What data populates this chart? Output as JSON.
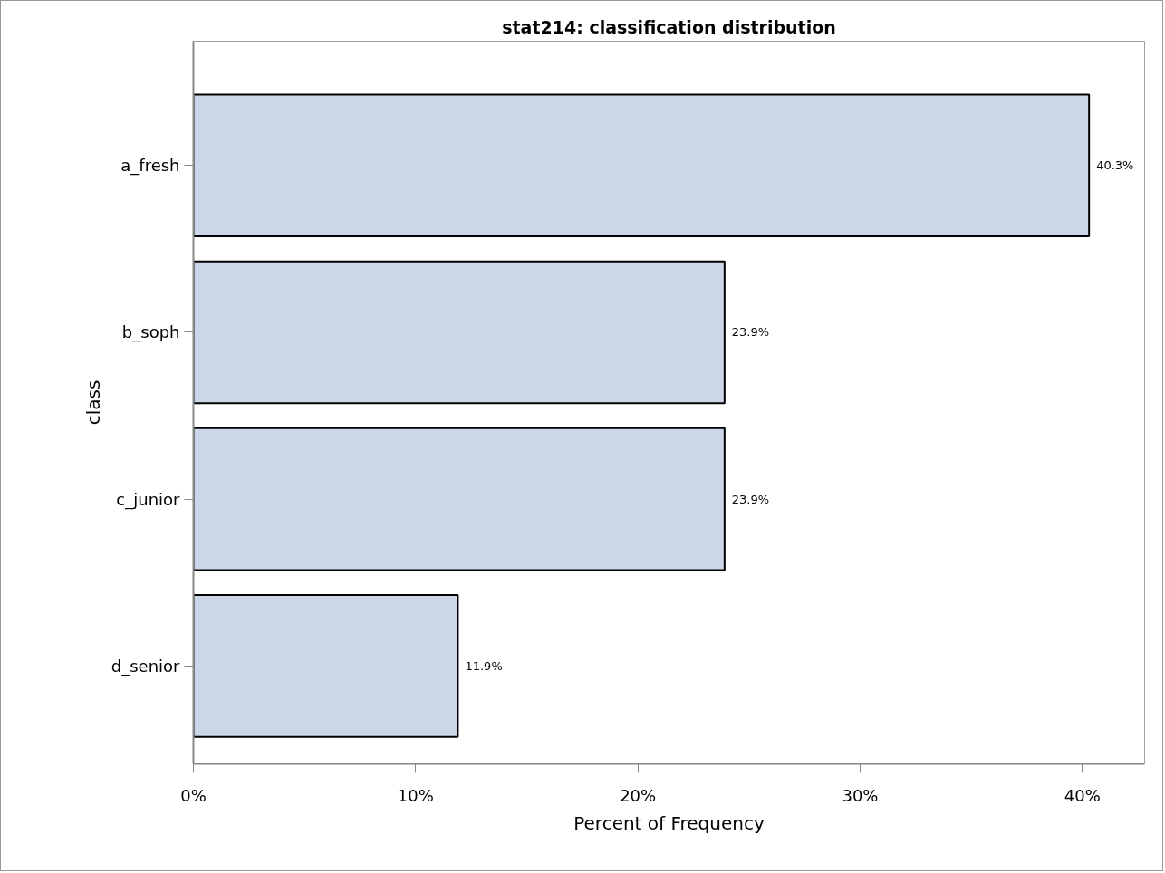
{
  "chart_data": {
    "type": "bar",
    "orientation": "horizontal",
    "title": "stat214: classification distribution",
    "xlabel": "Percent of Frequency",
    "ylabel": "class",
    "categories": [
      "a_fresh",
      "b_soph",
      "c_junior",
      "d_senior"
    ],
    "values": [
      40.3,
      23.9,
      23.9,
      11.9
    ],
    "value_labels": [
      "40.3%",
      "23.9%",
      "23.9%",
      "11.9%"
    ],
    "color": "#cbd6e6",
    "xlim": [
      0,
      42.8
    ],
    "xticks": [
      {
        "value": 0,
        "label": "0%"
      },
      {
        "value": 10,
        "label": "10%"
      },
      {
        "value": 20,
        "label": "20%"
      },
      {
        "value": 30,
        "label": "30%"
      },
      {
        "value": 40,
        "label": "40%"
      }
    ],
    "grid": false
  }
}
